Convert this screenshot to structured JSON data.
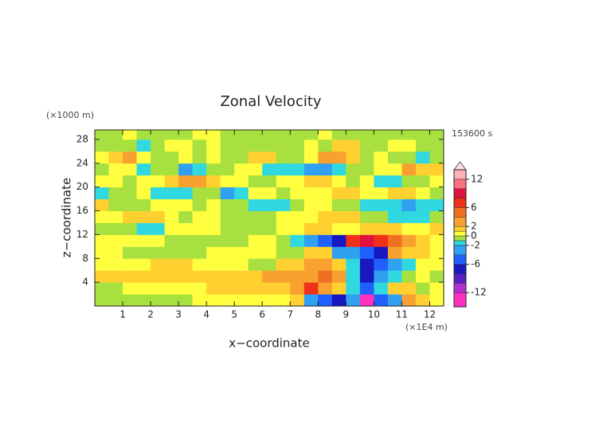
{
  "chart_data": {
    "type": "contour",
    "title": "Zonal Velocity",
    "y_unit_label": "(×1000 m)",
    "x_unit_label": "(×1E4 m)",
    "time_label": "153600 s",
    "xlabel": "x−coordinate",
    "ylabel": "z−coordinate",
    "xlim": [
      0,
      12.5
    ],
    "ylim": [
      0,
      29.6
    ],
    "xticks": [
      1,
      2,
      3,
      4,
      5,
      6,
      7,
      8,
      9,
      10,
      11,
      12
    ],
    "yticks": [
      4,
      8,
      12,
      16,
      20,
      24,
      28
    ],
    "x": [
      0.25,
      0.75,
      1.25,
      1.75,
      2.25,
      2.75,
      3.25,
      3.75,
      4.25,
      4.75,
      5.25,
      5.75,
      6.25,
      6.75,
      7.25,
      7.75,
      8.25,
      8.75,
      9.25,
      9.75,
      10.25,
      10.75,
      11.25,
      11.75,
      12.25
    ],
    "y": [
      1,
      3,
      5,
      7,
      9,
      11,
      13,
      15,
      17,
      19,
      21,
      23,
      25,
      27,
      29
    ],
    "z": [
      [
        -0.5,
        -0.5,
        -0.5,
        -0.5,
        -0.5,
        -0.5,
        -0.5,
        0.5,
        0.5,
        0.5,
        0.5,
        0.5,
        0.5,
        0.5,
        1.5,
        -3,
        -5,
        -7,
        -3,
        -13,
        -5,
        -3,
        3,
        1.5,
        0.5
      ],
      [
        -0.5,
        -0.5,
        0.5,
        0.5,
        0.5,
        0.5,
        0.5,
        0.5,
        1.5,
        1.5,
        1.5,
        1.5,
        1.5,
        1.5,
        3,
        7,
        3,
        1.5,
        -1.5,
        -5,
        -1.5,
        1.5,
        1.5,
        -0.5,
        0.5
      ],
      [
        1.5,
        1.5,
        1.5,
        1.5,
        1.5,
        1.5,
        1.5,
        1.5,
        1.5,
        1.5,
        1.5,
        1.5,
        3,
        3,
        3,
        3,
        5,
        3,
        -1.5,
        -7,
        -3,
        -1.5,
        -0.5,
        0.5,
        -0.5
      ],
      [
        0.5,
        0.5,
        0.5,
        0.5,
        1.5,
        1.5,
        1.5,
        0.5,
        0.5,
        0.5,
        0.5,
        -0.5,
        -0.5,
        1.5,
        1.5,
        3,
        3,
        1.5,
        -1.5,
        -7,
        -5,
        -3,
        -1.5,
        0.5,
        0.5
      ],
      [
        0.5,
        0.5,
        -0.5,
        -0.5,
        -0.5,
        -0.5,
        -0.5,
        -0.5,
        0.5,
        0.5,
        0.5,
        0.5,
        0.5,
        -0.5,
        -0.5,
        1.5,
        1.5,
        -3,
        -3,
        -5,
        -7,
        3,
        1.5,
        1.5,
        0.5
      ],
      [
        0.5,
        0.5,
        0.5,
        0.5,
        0.5,
        -0.5,
        -0.5,
        -0.5,
        -0.5,
        -0.5,
        -0.5,
        0.5,
        0.5,
        -0.5,
        -1.5,
        -3,
        -5,
        -7,
        7,
        9,
        7,
        5,
        3,
        1.5,
        0.5
      ],
      [
        -0.5,
        -0.5,
        -0.5,
        -1.5,
        -1.5,
        0.5,
        0.5,
        0.5,
        0.5,
        -0.5,
        -0.5,
        -0.5,
        -0.5,
        0.5,
        0.5,
        1.5,
        1.5,
        0.5,
        0.5,
        1.5,
        1.5,
        1.5,
        0.5,
        0.5,
        1.5
      ],
      [
        0.5,
        0.5,
        1.5,
        1.5,
        1.5,
        0.5,
        -0.5,
        0.5,
        0.5,
        -0.5,
        -0.5,
        -0.5,
        -0.5,
        0.5,
        0.5,
        0.5,
        1.5,
        1.5,
        1.5,
        -0.5,
        -0.5,
        -1.5,
        -1.5,
        -1.5,
        -0.5
      ],
      [
        1.5,
        -0.5,
        -0.5,
        -0.5,
        0.5,
        0.5,
        0.5,
        -0.5,
        0.5,
        -0.5,
        -0.5,
        -1.5,
        -1.5,
        -1.5,
        -0.5,
        0.5,
        0.5,
        -0.5,
        -0.5,
        -1.5,
        -1.5,
        -1.5,
        -3,
        -1.5,
        -1.5
      ],
      [
        -1.5,
        -0.5,
        -0.5,
        0.5,
        -1.5,
        -1.5,
        -1.5,
        -0.5,
        -0.5,
        -3,
        -1.5,
        0.5,
        0.5,
        -0.5,
        0.5,
        0.5,
        0.5,
        1.5,
        1.5,
        0.5,
        0.5,
        1.5,
        1.5,
        0.5,
        -0.5
      ],
      [
        0.5,
        0.5,
        -0.5,
        0.5,
        0.5,
        1.5,
        3,
        3,
        1.5,
        0.5,
        0.5,
        -0.5,
        -0.5,
        0.5,
        0.5,
        1.5,
        1.5,
        0.5,
        -0.5,
        0.5,
        -1.5,
        -1.5,
        -0.5,
        -0.5,
        0.5
      ],
      [
        -0.5,
        0.5,
        0.5,
        -1.5,
        -0.5,
        -0.5,
        -3,
        -1.5,
        -0.5,
        -0.5,
        0.5,
        0.5,
        -1.5,
        -1.5,
        -1.5,
        -3,
        -3,
        -1.5,
        -0.5,
        -0.5,
        0.5,
        0.5,
        3,
        1.5,
        1.5
      ],
      [
        0.5,
        1.5,
        3,
        0.5,
        -0.5,
        -0.5,
        0.5,
        -0.5,
        0.5,
        -0.5,
        -0.5,
        1.5,
        1.5,
        -0.5,
        -0.5,
        0.5,
        3,
        3,
        1.5,
        -0.5,
        0.5,
        -0.5,
        -0.5,
        -1.5,
        -0.5
      ],
      [
        -0.5,
        -0.5,
        -0.5,
        -1.5,
        -0.5,
        0.5,
        0.5,
        -0.5,
        0.5,
        -0.5,
        -0.5,
        -0.5,
        -0.5,
        -0.5,
        -0.5,
        0.5,
        -0.5,
        1.5,
        1.5,
        -0.5,
        -0.5,
        0.5,
        0.5,
        -0.5,
        -0.5
      ],
      [
        -0.5,
        -0.5,
        0.5,
        -0.5,
        -0.5,
        -0.5,
        -0.5,
        0.5,
        0.5,
        -0.5,
        -0.5,
        -0.5,
        -0.5,
        -0.5,
        -0.5,
        -0.5,
        0.5,
        -0.5,
        -0.5,
        -0.5,
        -0.5,
        -0.5,
        -0.5,
        -0.5,
        -0.5
      ]
    ],
    "colorbar": {
      "levels": [
        -15,
        -12,
        -10,
        -8,
        -6,
        -4,
        -2,
        -1,
        0,
        1,
        2,
        4,
        6,
        8,
        10,
        12,
        14
      ],
      "colors": [
        "#ff30c0",
        "#b030d0",
        "#5a20c0",
        "#1818c0",
        "#2060ff",
        "#30a0f0",
        "#30d8e0",
        "#a8e040",
        "#ffff40",
        "#ffd030",
        "#f8a030",
        "#f07020",
        "#f03018",
        "#e01040",
        "#ff7080",
        "#ffb0b8"
      ],
      "extend": "max",
      "extend_color": "#ffe0e4",
      "ticks": [
        -12,
        -6,
        -2,
        0,
        2,
        6,
        12
      ]
    }
  }
}
